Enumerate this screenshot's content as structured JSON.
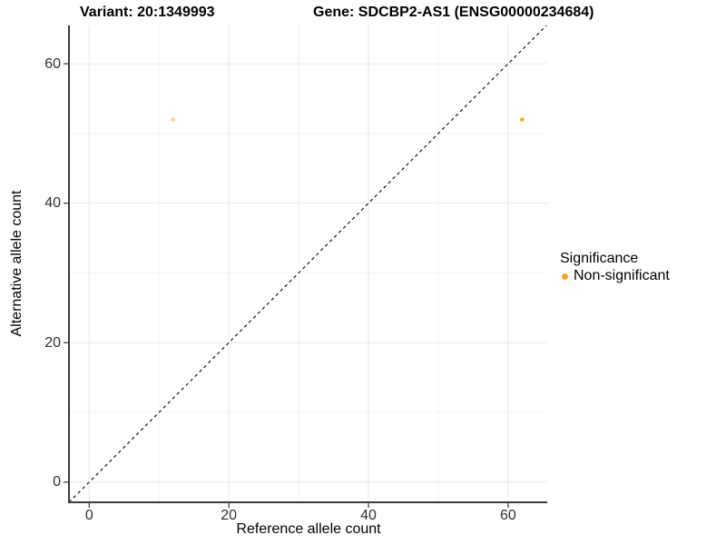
{
  "chart_data": {
    "type": "scatter",
    "title_left": "Variant: 20:1349993",
    "title_right": "Gene: SDCBP2-AS1 (ENSG00000234684)",
    "xlabel": "Reference allele count",
    "ylabel": "Alternative allele count",
    "xlim": [
      -2.9,
      65.6
    ],
    "ylim": [
      -2.9,
      65.5
    ],
    "x_ticks": [
      0,
      20,
      40,
      60
    ],
    "y_ticks": [
      0,
      20,
      40,
      60
    ],
    "x_minor_ticks": [
      10,
      30,
      50
    ],
    "y_minor_ticks": [
      10,
      30,
      50
    ],
    "grid": true,
    "identity_line": {
      "equation": "y = x",
      "style": "dashed",
      "color": "#000000"
    },
    "series": [
      {
        "name": "Non-significant",
        "color": "#F9A420",
        "points": [
          {
            "x": 12,
            "y": 52,
            "opacity": 0.5
          },
          {
            "x": 62,
            "y": 52,
            "opacity": 1
          }
        ]
      }
    ],
    "legend": {
      "title": "Significance",
      "position": "right",
      "items": [
        {
          "label": "Non-significant",
          "color": "#F9A420"
        }
      ]
    },
    "colors": {
      "background": "#FFFFFF",
      "axis_line": "#3C3C3C",
      "tick_mark": "#333333",
      "tick_label": "#303030",
      "grid_major": "#E8E8E8",
      "grid_minor": "#F4F4F4"
    }
  }
}
